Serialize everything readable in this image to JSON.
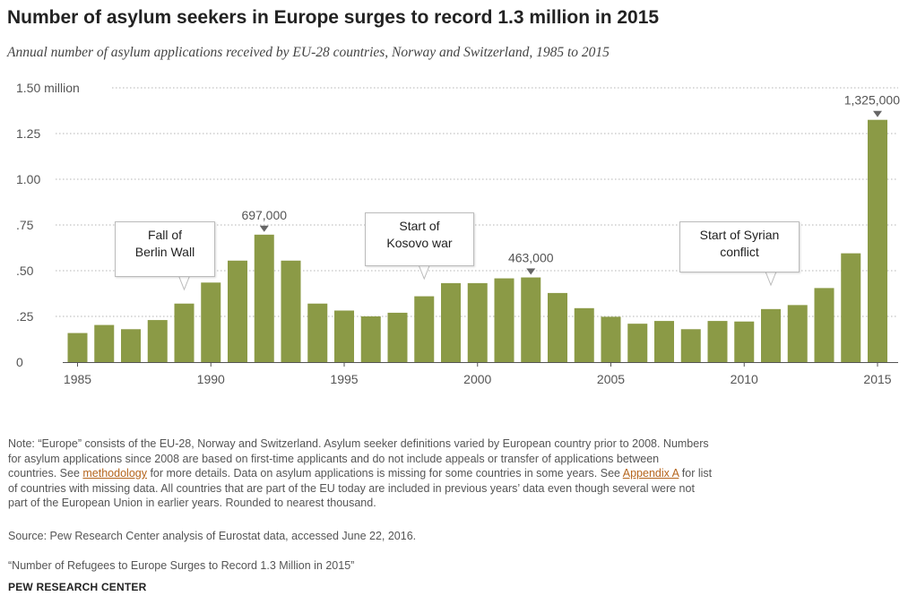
{
  "header": {
    "title": "Number of asylum seekers in Europe surges to record 1.3 million in 2015",
    "subtitle": "Annual number of asylum applications received by EU-28 countries, Norway and Switzerland, 1985 to 2015"
  },
  "chart_data": {
    "type": "bar",
    "title": "Number of asylum seekers in Europe surges to record 1.3 million in 2015",
    "subtitle": "Annual number of asylum applications received by EU-28 countries, Norway and Switzerland, 1985 to 2015",
    "xlabel": "",
    "ylabel": "",
    "ylim": [
      0,
      1.5
    ],
    "y_unit": "million",
    "grid": "horizontal dotted",
    "bar_color": "#8b9a46",
    "y_ticks": [
      {
        "value": 1.5,
        "label": "1.50 million"
      },
      {
        "value": 1.25,
        "label": "1.25"
      },
      {
        "value": 1.0,
        "label": "1.00"
      },
      {
        "value": 0.75,
        "label": ".75"
      },
      {
        "value": 0.5,
        "label": ".50"
      },
      {
        "value": 0.25,
        "label": ".25"
      },
      {
        "value": 0,
        "label": "0"
      }
    ],
    "x_tick_labels": [
      "1985",
      "1990",
      "1995",
      "2000",
      "2005",
      "2010",
      "2015"
    ],
    "categories": [
      1985,
      1986,
      1987,
      1988,
      1989,
      1990,
      1991,
      1992,
      1993,
      1994,
      1995,
      1996,
      1997,
      1998,
      1999,
      2000,
      2001,
      2002,
      2003,
      2004,
      2005,
      2006,
      2007,
      2008,
      2009,
      2010,
      2011,
      2012,
      2013,
      2014,
      2015
    ],
    "values": [
      0.159,
      0.203,
      0.18,
      0.23,
      0.32,
      0.435,
      0.555,
      0.697,
      0.555,
      0.32,
      0.282,
      0.25,
      0.27,
      0.36,
      0.432,
      0.432,
      0.458,
      0.463,
      0.378,
      0.295,
      0.248,
      0.21,
      0.225,
      0.18,
      0.225,
      0.222,
      0.29,
      0.312,
      0.405,
      0.595,
      1.325
    ],
    "value_labels": [
      {
        "year": 1992,
        "label": "697,000"
      },
      {
        "year": 2002,
        "label": "463,000"
      },
      {
        "year": 2015,
        "label": "1,325,000"
      }
    ],
    "annotations": [
      {
        "year": 1989,
        "text": [
          "Fall of",
          "Berlin Wall"
        ]
      },
      {
        "year": 1998,
        "text": [
          "Start of",
          "Kosovo war"
        ]
      },
      {
        "year": 2011,
        "text": [
          "Start of Syrian",
          "conflict"
        ]
      }
    ]
  },
  "footer": {
    "note_lines": [
      "Note: “Europe” consists of the EU-28, Norway and Switzerland. Asylum seeker definitions varied by European country prior to 2008. Numbers",
      "for asylum applications since 2008 are based on first-time applicants and do not include appeals or transfer of applications between"
    ],
    "note_line3_before": "countries. See ",
    "note_link_methodology": "methodology",
    "note_line3_mid": " for more details. Data on asylum applications is missing for some countries in some years. See ",
    "note_link_appendix": "Appendix A",
    "note_line3_after": " for list",
    "note_line4": "of countries with missing data. All countries that are part of the EU today are included in previous years’ data even though several were not",
    "note_line5": "part of the European Union in earlier years. Rounded to nearest thousand.",
    "source": "Source:  Pew Research Center analysis of Eurostat data, accessed June 22, 2016.",
    "citation": "“Number of Refugees to Europe Surges to Record 1.3 Million in 2015”",
    "brand": "PEW RESEARCH CENTER"
  }
}
